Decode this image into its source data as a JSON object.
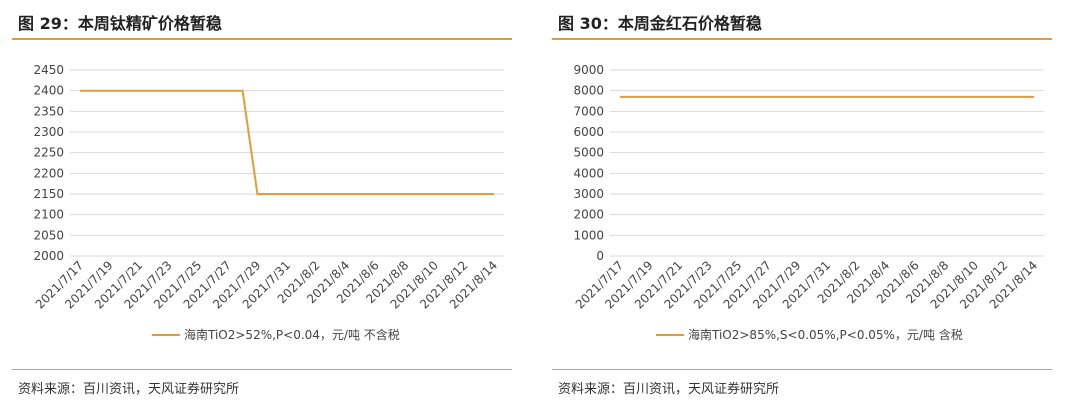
{
  "panels": [
    {
      "title": "图 29：本周钛精矿价格暂稳",
      "source": "资料来源：百川资讯，天风证券研究所"
    },
    {
      "title": "图 30：本周金红石价格暂稳",
      "source": "资料来源：百川资讯，天风证券研究所"
    }
  ],
  "chart_data": [
    {
      "type": "line",
      "title": "图 29：本周钛精矿价格暂稳",
      "xlabel": "",
      "ylabel": "",
      "ylim": [
        2000,
        2450
      ],
      "yticks": [
        2000,
        2050,
        2100,
        2150,
        2200,
        2250,
        2300,
        2350,
        2400,
        2450
      ],
      "x": [
        "2021/7/17",
        "2021/7/18",
        "2021/7/19",
        "2021/7/20",
        "2021/7/21",
        "2021/7/22",
        "2021/7/23",
        "2021/7/24",
        "2021/7/25",
        "2021/7/26",
        "2021/7/27",
        "2021/7/28",
        "2021/7/29",
        "2021/7/30",
        "2021/7/31",
        "2021/8/1",
        "2021/8/2",
        "2021/8/3",
        "2021/8/4",
        "2021/8/5",
        "2021/8/6",
        "2021/8/7",
        "2021/8/8",
        "2021/8/9",
        "2021/8/10",
        "2021/8/11",
        "2021/8/12",
        "2021/8/13",
        "2021/8/14"
      ],
      "xtick_labels": [
        "2021/7/17",
        "2021/7/19",
        "2021/7/21",
        "2021/7/23",
        "2021/7/25",
        "2021/7/27",
        "2021/7/29",
        "2021/7/31",
        "2021/8/2",
        "2021/8/4",
        "2021/8/6",
        "2021/8/8",
        "2021/8/10",
        "2021/8/12",
        "2021/8/14"
      ],
      "series": [
        {
          "name": "海南TiO2>52%,P<0.04，元/吨 不含税",
          "color": "#E59A3C",
          "values": [
            2400,
            2400,
            2400,
            2400,
            2400,
            2400,
            2400,
            2400,
            2400,
            2400,
            2400,
            2400,
            2150,
            2150,
            2150,
            2150,
            2150,
            2150,
            2150,
            2150,
            2150,
            2150,
            2150,
            2150,
            2150,
            2150,
            2150,
            2150,
            2150
          ]
        }
      ],
      "grid": true,
      "legend_position": "bottom"
    },
    {
      "type": "line",
      "title": "图 30：本周金红石价格暂稳",
      "xlabel": "",
      "ylabel": "",
      "ylim": [
        0,
        9000
      ],
      "yticks": [
        0,
        1000,
        2000,
        3000,
        4000,
        5000,
        6000,
        7000,
        8000,
        9000
      ],
      "x": [
        "2021/7/17",
        "2021/7/18",
        "2021/7/19",
        "2021/7/20",
        "2021/7/21",
        "2021/7/22",
        "2021/7/23",
        "2021/7/24",
        "2021/7/25",
        "2021/7/26",
        "2021/7/27",
        "2021/7/28",
        "2021/7/29",
        "2021/7/30",
        "2021/7/31",
        "2021/8/1",
        "2021/8/2",
        "2021/8/3",
        "2021/8/4",
        "2021/8/5",
        "2021/8/6",
        "2021/8/7",
        "2021/8/8",
        "2021/8/9",
        "2021/8/10",
        "2021/8/11",
        "2021/8/12",
        "2021/8/13",
        "2021/8/14"
      ],
      "xtick_labels": [
        "2021/7/17",
        "2021/7/19",
        "2021/7/21",
        "2021/7/23",
        "2021/7/25",
        "2021/7/27",
        "2021/7/29",
        "2021/7/31",
        "2021/8/2",
        "2021/8/4",
        "2021/8/6",
        "2021/8/8",
        "2021/8/10",
        "2021/8/12",
        "2021/8/14"
      ],
      "series": [
        {
          "name": "海南TiO2>85%,S<0.05%,P<0.05%，元/吨 含税",
          "color": "#E59A3C",
          "values": [
            7700,
            7700,
            7700,
            7700,
            7700,
            7700,
            7700,
            7700,
            7700,
            7700,
            7700,
            7700,
            7700,
            7700,
            7700,
            7700,
            7700,
            7700,
            7700,
            7700,
            7700,
            7700,
            7700,
            7700,
            7700,
            7700,
            7700,
            7700,
            7700
          ]
        }
      ],
      "grid": true,
      "legend_position": "bottom"
    }
  ]
}
